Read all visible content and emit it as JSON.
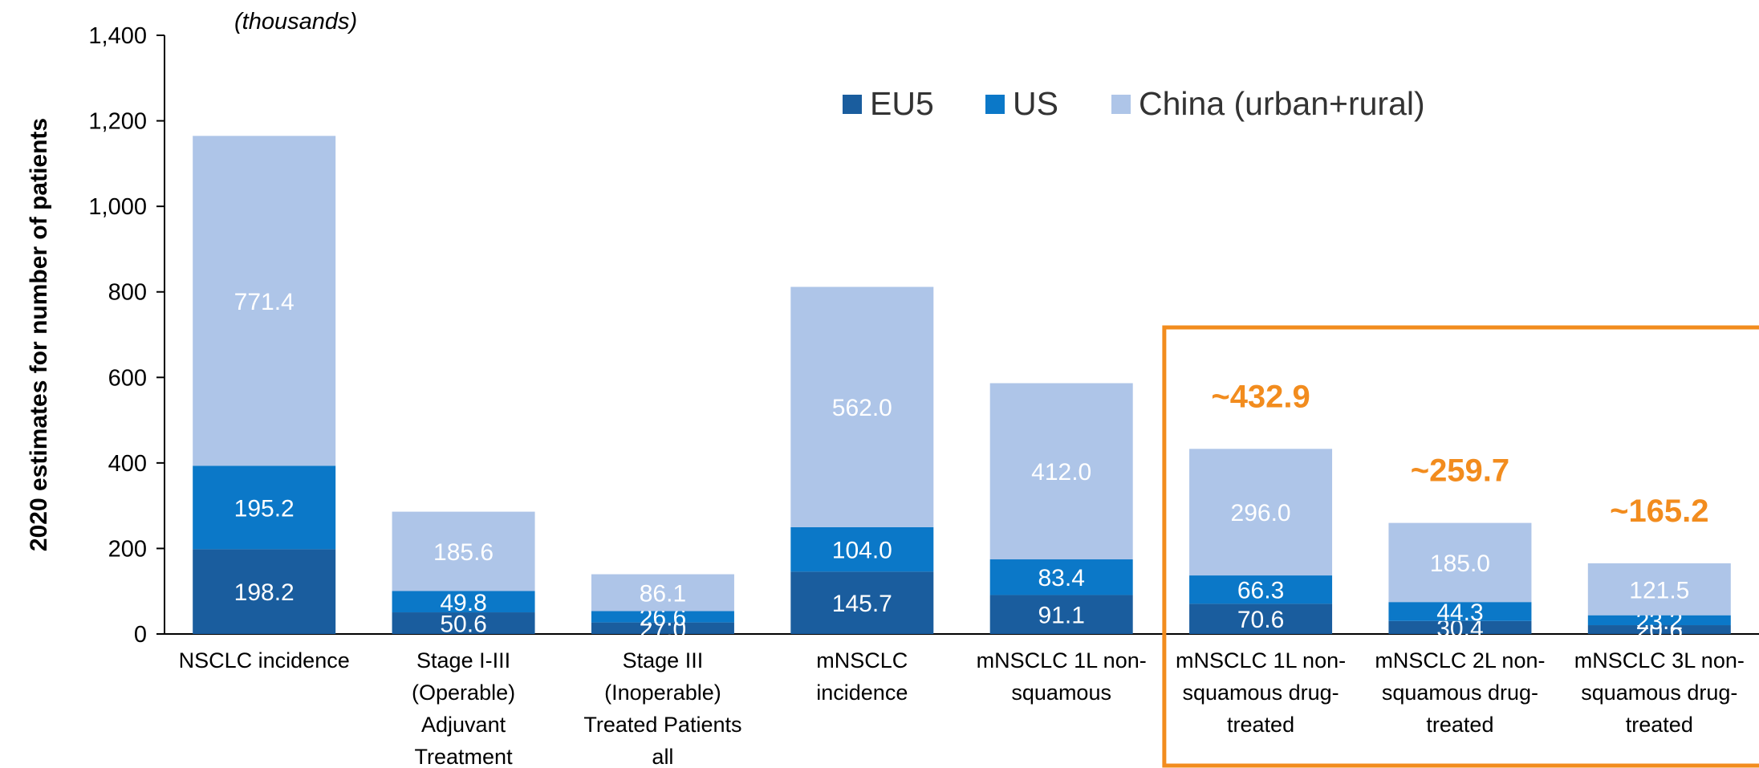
{
  "chart_data": {
    "type": "bar",
    "stacked": true,
    "units_note": "(thousands)",
    "ylabel": "2020 estimates for number of patients",
    "ylim": [
      0,
      1400
    ],
    "yticks": [
      "0",
      "200",
      "400",
      "600",
      "800",
      "1,000",
      "1,200",
      "1,400"
    ],
    "ytick_values": [
      0,
      200,
      400,
      600,
      800,
      1000,
      1200,
      1400
    ],
    "categories": [
      [
        "NSCLC incidence"
      ],
      [
        "Stage I-III",
        "(Operable)",
        "Adjuvant",
        "Treatment"
      ],
      [
        "Stage III",
        "(Inoperable)",
        "Treated Patients",
        "all"
      ],
      [
        "mNSCLC",
        "incidence"
      ],
      [
        "mNSCLC 1L non-",
        "squamous"
      ],
      [
        "mNSCLC 1L non-",
        "squamous drug-",
        "treated"
      ],
      [
        "mNSCLC 2L non-",
        "squamous drug-",
        "treated"
      ],
      [
        "mNSCLC 3L non-",
        "squamous drug-",
        "treated"
      ]
    ],
    "series": [
      {
        "name": "EU5",
        "color": "#1A5D9E",
        "values": [
          198.2,
          50.6,
          27.0,
          145.7,
          91.1,
          70.6,
          30.4,
          20.6
        ],
        "labels": [
          "198.2",
          "50.6",
          "27.0",
          "145.7",
          "91.1",
          "70.6",
          "30.4",
          "20.6"
        ]
      },
      {
        "name": "US",
        "color": "#0B78C8",
        "values": [
          195.2,
          49.8,
          26.6,
          104.0,
          83.4,
          66.3,
          44.3,
          23.2
        ],
        "labels": [
          "195.2",
          "49.8",
          "26.6",
          "104.0",
          "83.4",
          "66.3",
          "44.3",
          "23.2"
        ]
      },
      {
        "name": "China (urban+rural)",
        "color": "#AEC5E8",
        "values": [
          771.4,
          185.6,
          86.1,
          562.0,
          412.0,
          296.0,
          185.0,
          121.5
        ],
        "labels": [
          "771.4",
          "185.6",
          "86.1",
          "562.0",
          "412.0",
          "296.0",
          "185.0",
          "121.5"
        ]
      }
    ],
    "totals_annotations": [
      {
        "index": 5,
        "text": "~432.9"
      },
      {
        "index": 6,
        "text": "~259.7"
      },
      {
        "index": 7,
        "text": "~165.2"
      }
    ],
    "annotation_color": "#F28C1E",
    "legend_position": "top-right",
    "highlight_box": "around last three categories"
  }
}
